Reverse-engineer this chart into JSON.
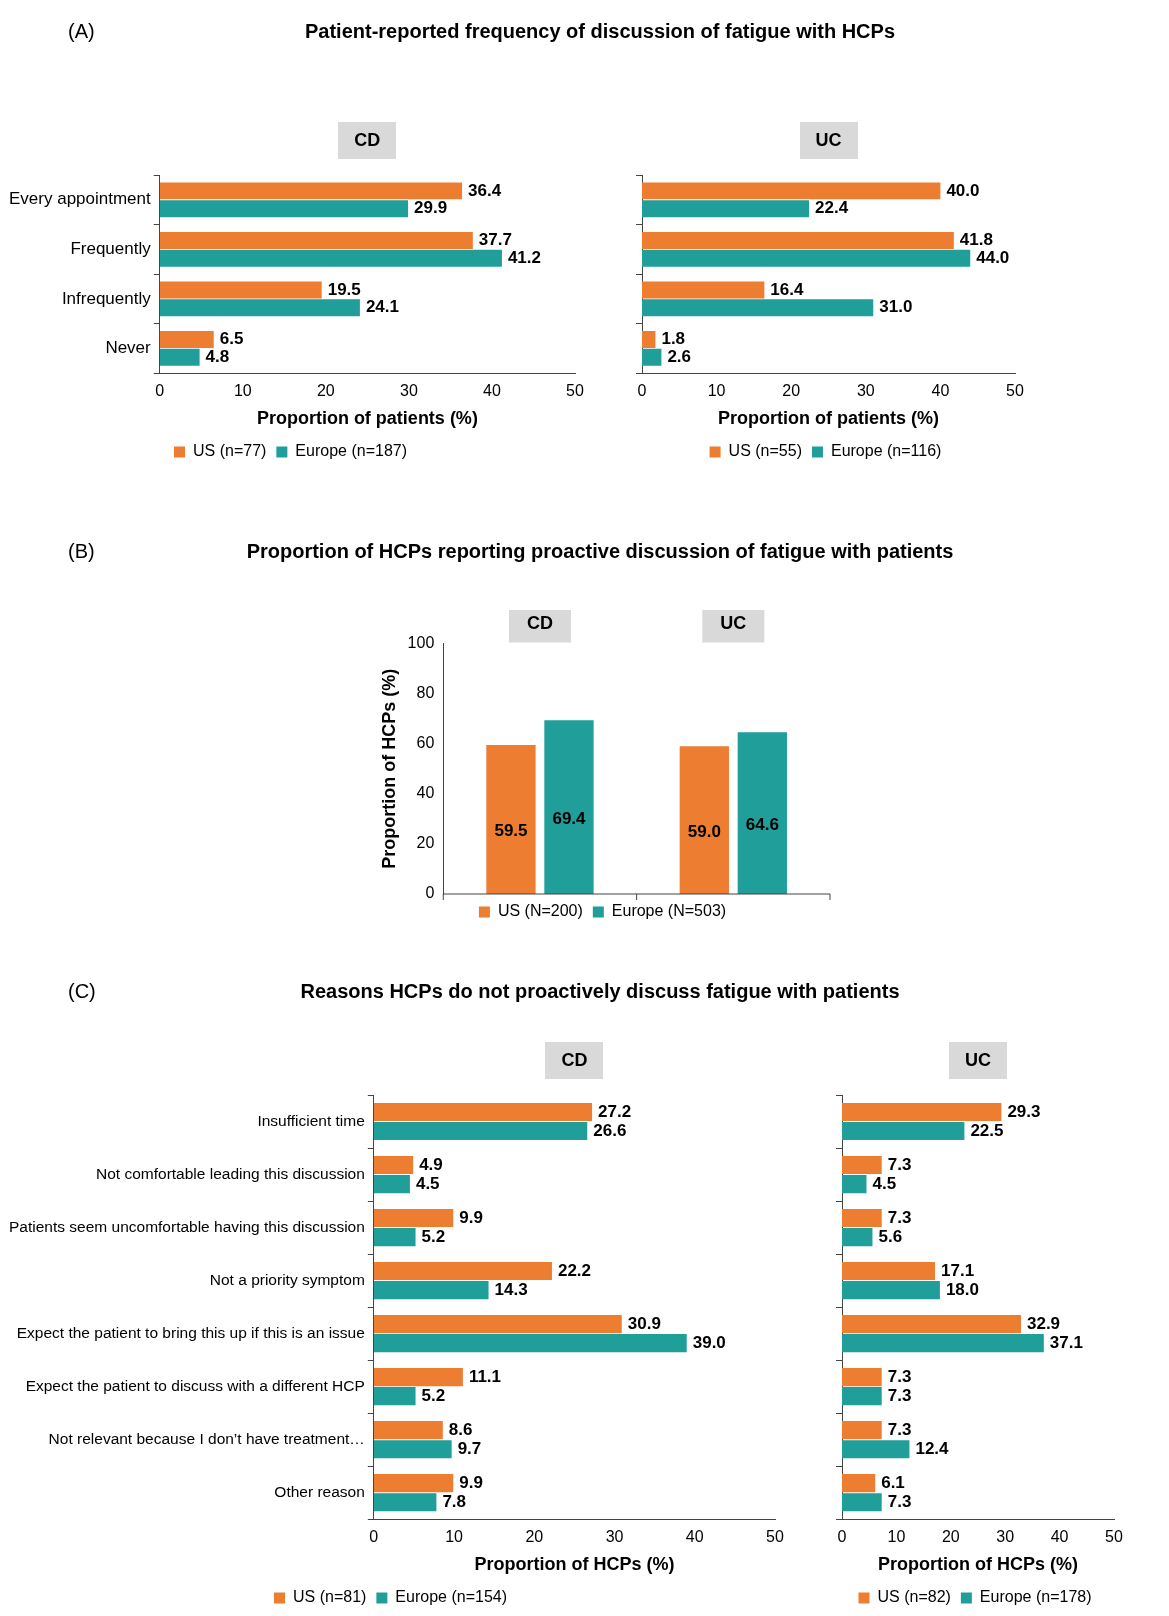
{
  "chart_data": [
    {
      "type": "bar",
      "orientation": "horizontal",
      "title": "Patient-reported frequency of discussion of fatigue with HCPs",
      "subtitle": "CD",
      "annotations": [
        "(A)"
      ],
      "categories": [
        "Every appointment",
        "Frequently",
        "Infrequently",
        "Never"
      ],
      "xlabel": "Proportion of patients (%)",
      "xlim": [
        0,
        50
      ],
      "xticks": [
        0,
        10,
        20,
        30,
        40,
        50
      ],
      "grid": false,
      "legend": "bottom",
      "series": [
        {
          "name": "US (n=77)",
          "color": "#ed7d31",
          "values": [
            36.4,
            37.7,
            19.5,
            6.5
          ],
          "value_labels": [
            "36.4",
            "37.7",
            "19.5",
            "6.5"
          ]
        },
        {
          "name": "Europe (n=187)",
          "color": "#1f9e9a",
          "values": [
            29.9,
            41.2,
            24.1,
            4.8
          ],
          "value_labels": [
            "29.9",
            "41.2",
            "24.1",
            "4.8"
          ]
        }
      ]
    },
    {
      "type": "bar",
      "orientation": "horizontal",
      "subtitle": "UC",
      "categories": [
        null,
        null,
        null,
        null
      ],
      "tick_labels": "x",
      "xlabel": "Proportion of patients (%)",
      "xlim": [
        0,
        50
      ],
      "xticks": [
        0,
        10,
        20,
        30,
        40,
        50
      ],
      "grid": false,
      "legend": "bottom",
      "series": [
        {
          "name": "US (n=55)",
          "color": "#ed7d31",
          "values": [
            40,
            41.8,
            16.4,
            1.8
          ],
          "value_labels": [
            "40.0",
            "41.8",
            "16.4",
            "1.8"
          ]
        },
        {
          "name": "Europe (n=116)",
          "color": "#1f9e9a",
          "values": [
            22.4,
            44,
            31,
            2.6
          ],
          "value_labels": [
            "22.4",
            "44.0",
            "31.0",
            "2.6"
          ]
        }
      ]
    },
    {
      "type": "bar",
      "title": "Proportion of HCPs reporting proactive discussion of fatigue with patients",
      "annotations": [
        "(B)"
      ],
      "categories": [
        "CD",
        "UC"
      ],
      "ylabel": "Proportion of HCPs (%)",
      "ylim": [
        0,
        100
      ],
      "yticks": [
        0,
        20,
        40,
        60,
        80,
        100
      ],
      "grid": false,
      "legend": "bottom",
      "series": [
        {
          "name": "US (N=200)",
          "color": "#ed7d31",
          "values": [
            59.5,
            59
          ],
          "value_labels": [
            "59.5",
            "59.0"
          ]
        },
        {
          "name": "Europe (N=503)",
          "color": "#1f9e9a",
          "values": [
            69.4,
            64.6
          ],
          "value_labels": [
            "69.4",
            "64.6"
          ]
        }
      ]
    },
    {
      "type": "bar",
      "orientation": "horizontal",
      "title": "Reasons HCPs do not proactively discuss fatigue with patients",
      "subtitle": "CD",
      "annotations": [
        "(C)"
      ],
      "categories": [
        "Insufficient time",
        "Not comfortable leading this discussion",
        "Patients seem uncomfortable having this discussion",
        "Not a priority symptom",
        "Expect the patient to bring this up if this is an issue",
        "Expect the patient to discuss with a different HCP",
        "Not relevant because I don’t have treatment…",
        "Other reason"
      ],
      "xlabel": "Proportion of HCPs (%)",
      "xlim": [
        0,
        50
      ],
      "xticks": [
        0,
        10,
        20,
        30,
        40,
        50
      ],
      "grid": false,
      "legend": "bottom",
      "series": [
        {
          "name": "US (n=81)",
          "color": "#ed7d31",
          "values": [
            27.2,
            4.9,
            9.9,
            22.2,
            30.9,
            11.1,
            8.6,
            9.9
          ],
          "value_labels": [
            "27.2",
            "4.9",
            "9.9",
            "22.2",
            "30.9",
            "11.1",
            "8.6",
            "9.9"
          ]
        },
        {
          "name": "Europe (n=154)",
          "color": "#1f9e9a",
          "values": [
            26.6,
            4.5,
            5.2,
            14.3,
            39,
            5.2,
            9.7,
            7.8
          ],
          "value_labels": [
            "26.6",
            "4.5",
            "5.2",
            "14.3",
            "39.0",
            "5.2",
            "9.7",
            "7.8"
          ]
        }
      ]
    },
    {
      "type": "bar",
      "orientation": "horizontal",
      "subtitle": "UC",
      "categories": [
        null,
        null,
        null,
        null,
        null,
        null,
        null,
        null
      ],
      "tick_labels": "x",
      "xlabel": "Proportion of HCPs (%)",
      "xlim": [
        0,
        50
      ],
      "xticks": [
        0,
        10,
        20,
        30,
        40,
        50
      ],
      "grid": false,
      "legend": "bottom",
      "series": [
        {
          "name": "US (n=82)",
          "color": "#ed7d31",
          "values": [
            29.3,
            7.3,
            7.3,
            17.1,
            32.9,
            7.3,
            7.3,
            6.1
          ],
          "value_labels": [
            "29.3",
            "7.3",
            "7.3",
            "17.1",
            "32.9",
            "7.3",
            "7.3",
            "6.1"
          ]
        },
        {
          "name": "Europe (n=178)",
          "color": "#1f9e9a",
          "values": [
            22.5,
            4.5,
            5.6,
            18,
            37.1,
            7.3,
            12.4,
            7.3
          ],
          "value_labels": [
            "22.5",
            "4.5",
            "5.6",
            "18.0",
            "37.1",
            "7.3",
            "12.4",
            "7.3"
          ]
        }
      ]
    }
  ]
}
